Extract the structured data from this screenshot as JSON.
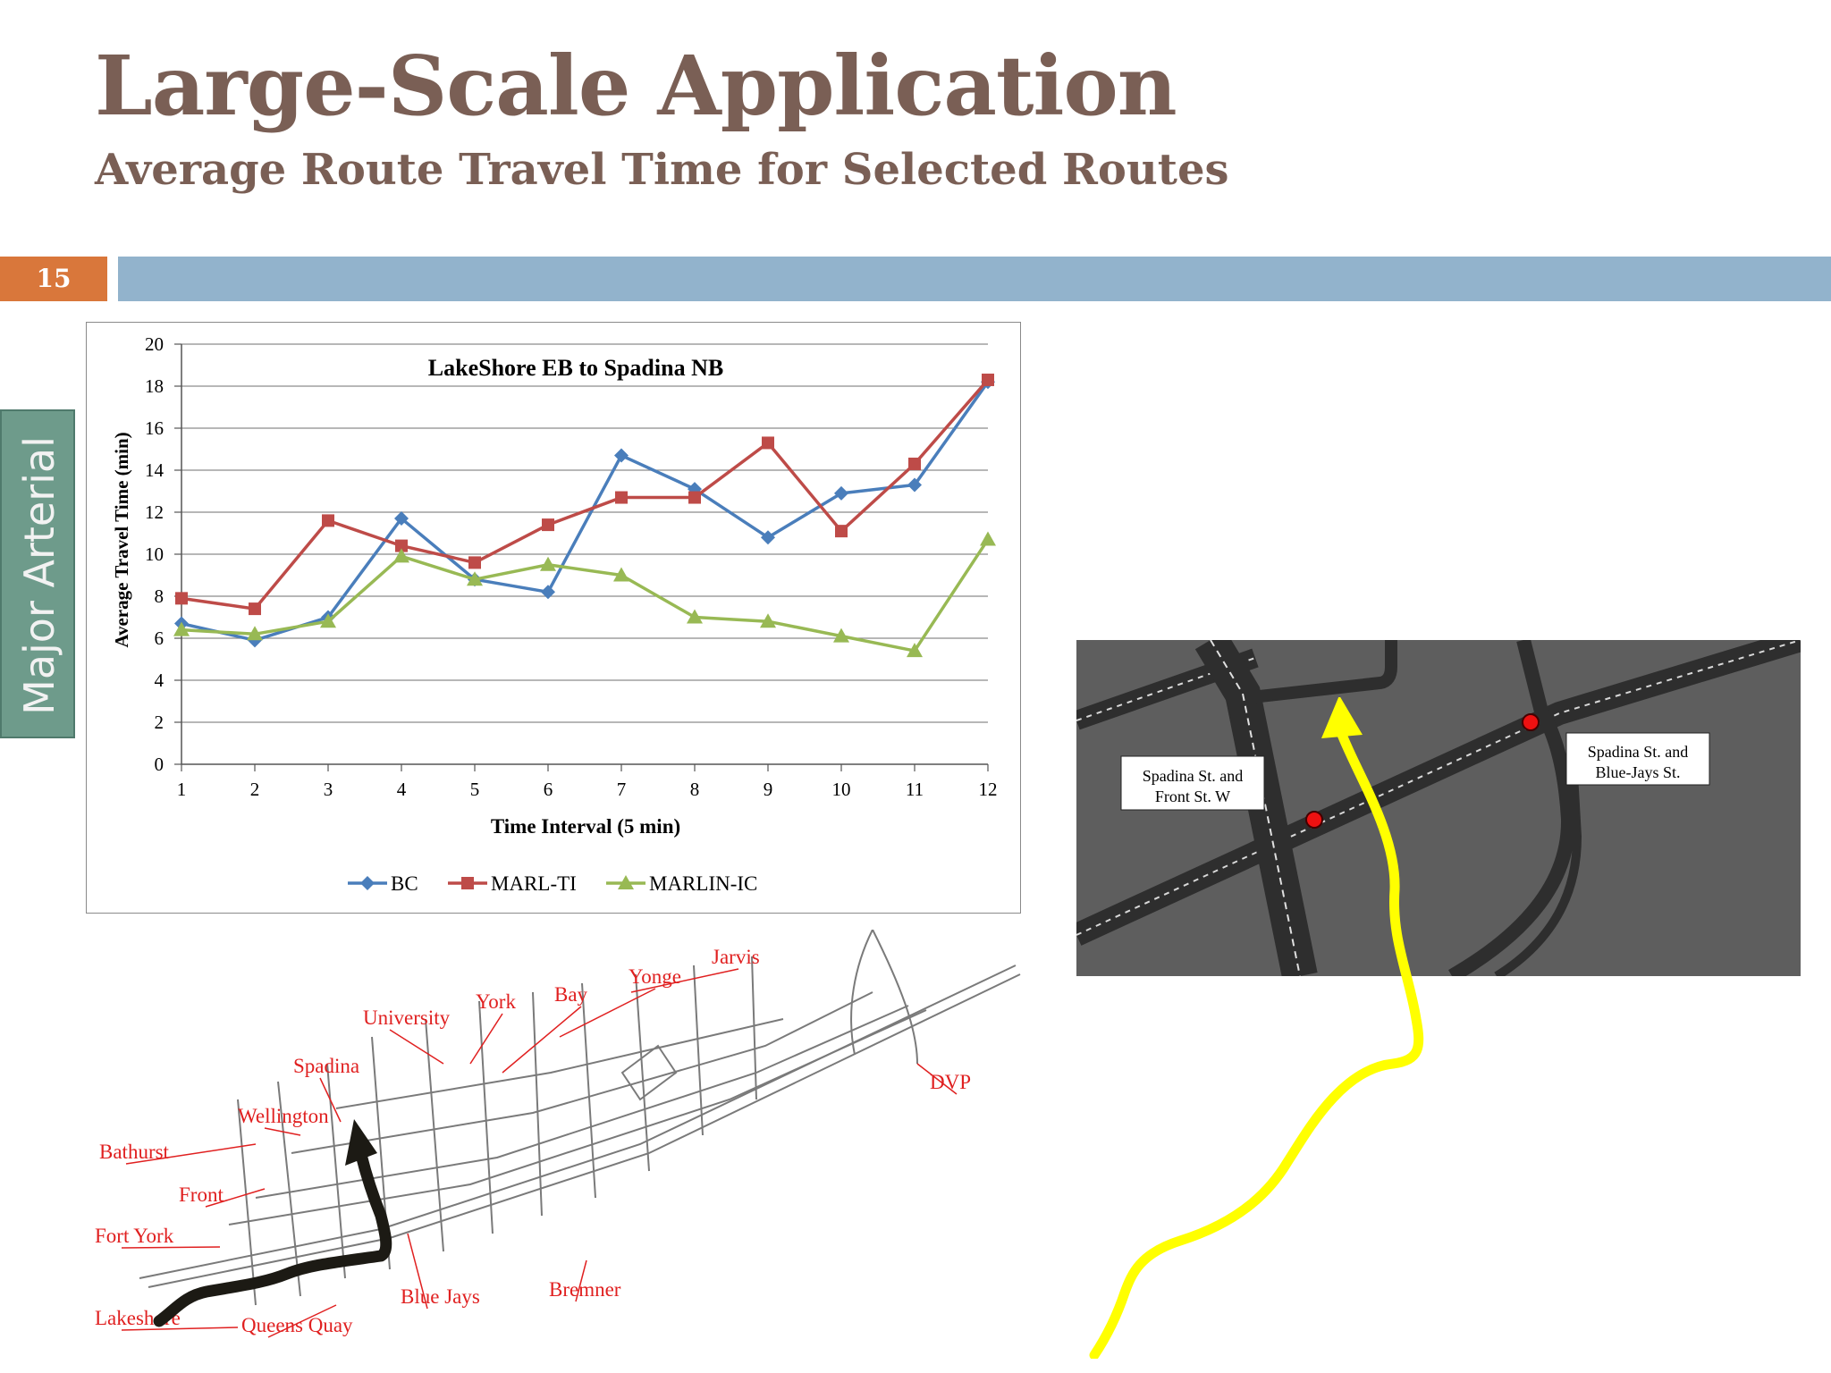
{
  "slide": {
    "title": "Large-Scale Application",
    "subtitle": "Average Route Travel Time for Selected Routes",
    "page_number": "15",
    "side_label": "Major Arterial"
  },
  "chart_data": {
    "type": "line",
    "title": "LakeShore EB to Spadina NB",
    "xlabel": "Time Interval (5 min)",
    "ylabel": "Average Travel Time (min)",
    "x": [
      1,
      2,
      3,
      4,
      5,
      6,
      7,
      8,
      9,
      10,
      11,
      12
    ],
    "ylim": [
      0,
      20
    ],
    "yticks": [
      0,
      2,
      4,
      6,
      8,
      10,
      12,
      14,
      16,
      18,
      20
    ],
    "grid": "horizontal",
    "legend": "bottom",
    "series": [
      {
        "name": "BC",
        "color": "#4a7ebb",
        "marker": "diamond",
        "values": [
          6.7,
          5.9,
          7.0,
          11.7,
          8.8,
          8.2,
          14.7,
          13.1,
          10.8,
          12.9,
          13.3,
          18.2
        ]
      },
      {
        "name": "MARL-TI",
        "color": "#be4b48",
        "marker": "square",
        "values": [
          7.9,
          7.4,
          11.6,
          10.4,
          9.6,
          11.4,
          12.7,
          12.7,
          15.3,
          11.1,
          14.3,
          18.3
        ]
      },
      {
        "name": "MARLIN-IC",
        "color": "#98b954",
        "marker": "triangle",
        "values": [
          6.4,
          6.2,
          6.8,
          9.9,
          8.8,
          9.5,
          9.0,
          7.0,
          6.8,
          6.1,
          5.4,
          10.7
        ]
      }
    ]
  },
  "map": {
    "labels": [
      "Jarvis",
      "Yonge",
      "Bay",
      "York",
      "University",
      "Spadina",
      "Wellington",
      "Bathurst",
      "Front",
      "Fort York",
      "Lakeshore",
      "Queens Quay",
      "Blue Jays",
      "Bremner",
      "DVP"
    ],
    "label_color": "#e02020"
  },
  "simulation": {
    "label_front": [
      "Spadina St. and",
      "Front St. W"
    ],
    "label_bluejays": [
      "Spadina St. and",
      "Blue-Jays St."
    ]
  }
}
